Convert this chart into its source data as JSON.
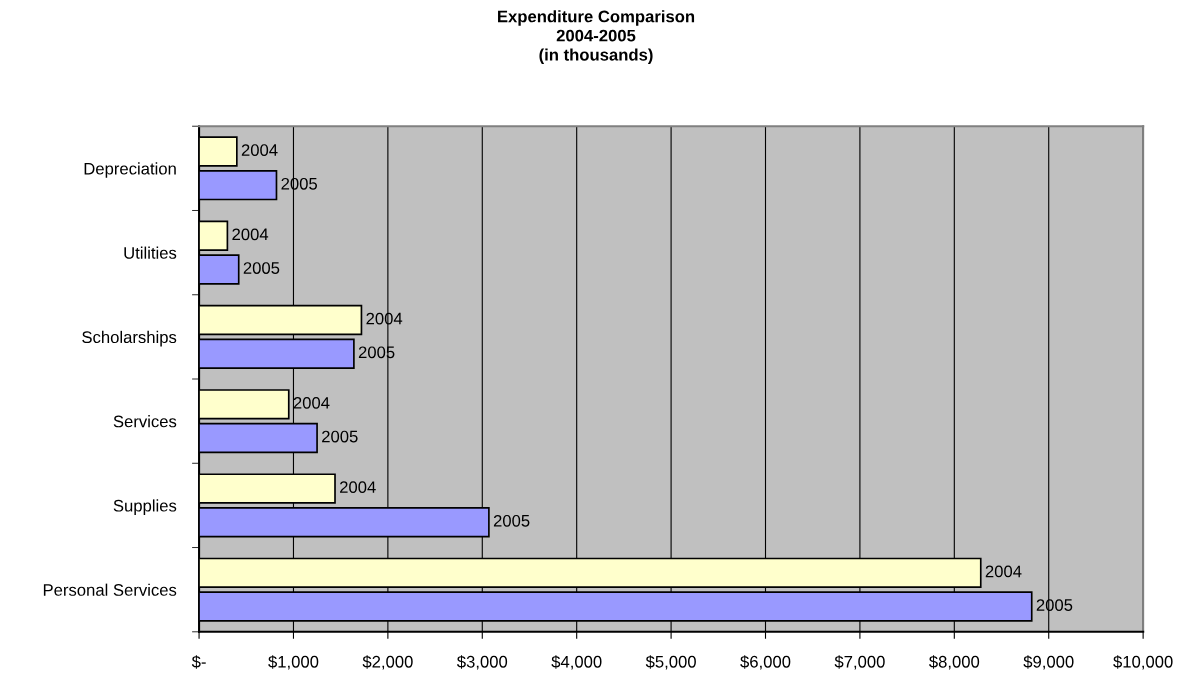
{
  "chart_data": {
    "type": "bar",
    "orientation": "horizontal",
    "title": "Expenditure Comparison\n2004-2005\n(in thousands)",
    "categories": [
      "Depreciation",
      "Utilities",
      "Scholarships",
      "Services",
      "Supplies",
      "Personal Services"
    ],
    "series": [
      {
        "name": "2004",
        "color": "#ffffcc",
        "values": [
          400,
          300,
          1720,
          950,
          1440,
          8280
        ]
      },
      {
        "name": "2005",
        "color": "#9999ff",
        "values": [
          820,
          420,
          1640,
          1250,
          3070,
          8820
        ]
      }
    ],
    "xlim": [
      0,
      10000
    ],
    "xticks": [
      {
        "value": 0,
        "label": "$-"
      },
      {
        "value": 1000,
        "label": "$1,000"
      },
      {
        "value": 2000,
        "label": "$2,000"
      },
      {
        "value": 3000,
        "label": "$3,000"
      },
      {
        "value": 4000,
        "label": "$4,000"
      },
      {
        "value": 5000,
        "label": "$5,000"
      },
      {
        "value": 6000,
        "label": "$6,000"
      },
      {
        "value": 7000,
        "label": "$7,000"
      },
      {
        "value": 8000,
        "label": "$8,000"
      },
      {
        "value": 9000,
        "label": "$9,000"
      },
      {
        "value": 10000,
        "label": "$10,000"
      }
    ],
    "grid": "x",
    "legend": false
  }
}
